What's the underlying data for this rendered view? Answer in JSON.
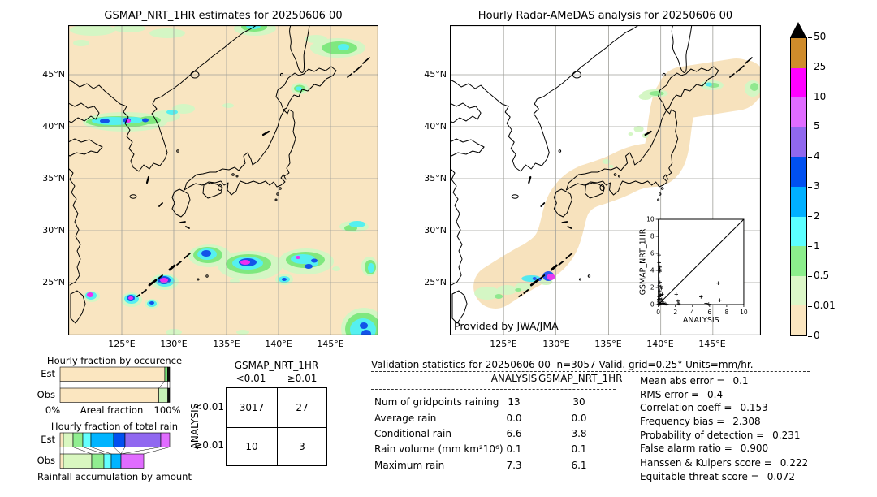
{
  "left_map": {
    "title": "GSMAP_NRT_1HR estimates for 20250606 00",
    "lat_labels": [
      "45°N",
      "40°N",
      "35°N",
      "30°N",
      "25°N"
    ],
    "lon_labels": [
      "125°E",
      "130°E",
      "135°E",
      "140°E",
      "145°E"
    ]
  },
  "right_map": {
    "title": "Hourly Radar-AMeDAS analysis for 20250606 00",
    "lat_labels": [
      "45°N",
      "40°N",
      "35°N",
      "30°N",
      "25°N"
    ],
    "lon_labels": [
      "125°E",
      "130°E",
      "135°E",
      "140°E",
      "145°E"
    ],
    "credit": "Provided by JWA/JMA"
  },
  "colorbar": {
    "tick_labels": [
      "50",
      "25",
      "10",
      "5",
      "4",
      "3",
      "2",
      "1",
      "0.5",
      "0.01",
      "0"
    ],
    "segment_colors_top_to_bottom": [
      "#cf8c2b",
      "#ff00ff",
      "#e06cff",
      "#9068ee",
      "#0050f0",
      "#00b0ff",
      "#5cffff",
      "#8cee8c",
      "#dcf7c8",
      "#fbe6c0"
    ],
    "overflow_color": "#000000",
    "units": "mm/hr"
  },
  "occurrence_panel": {
    "title": "Hourly fraction by occurence",
    "row_labels": [
      "Est",
      "Obs"
    ],
    "x_left": "0%",
    "x_title": "Areal fraction",
    "x_right": "100%"
  },
  "totalrain_panel": {
    "title": "Hourly fraction of total rain",
    "row_labels": [
      "Est",
      "Obs"
    ],
    "caption": "Rainfall accumulation by amount"
  },
  "contingency": {
    "col_title": "GSMAP_NRT_1HR",
    "row_title": "ANALYSIS",
    "col_labels": [
      "<0.01",
      "≥0.01"
    ],
    "row_labels": [
      "<0.01",
      "≥0.01"
    ],
    "values": [
      [
        "3017",
        "27"
      ],
      [
        "10",
        "3"
      ]
    ]
  },
  "stats": {
    "header": "Validation statistics for 20250606 00  n=3057 Valid. grid=0.25° Units=mm/hr.",
    "col_headers": [
      "ANALYSIS",
      "GSMAP_NRT_1HR"
    ],
    "rows": [
      {
        "label": "Num of gridpoints raining",
        "analysis": "13",
        "gsmap": "30"
      },
      {
        "label": "Average rain",
        "analysis": "0.0",
        "gsmap": "0.0"
      },
      {
        "label": "Conditional rain",
        "analysis": "6.6",
        "gsmap": "3.8"
      },
      {
        "label": "Rain volume (mm km²10⁶)",
        "analysis": "0.1",
        "gsmap": "0.1"
      },
      {
        "label": "Maximum rain",
        "analysis": "7.3",
        "gsmap": "6.1"
      }
    ],
    "metrics": [
      {
        "name": "Mean abs error =",
        "value": "0.1"
      },
      {
        "name": "RMS error =",
        "value": "0.4"
      },
      {
        "name": "Correlation coeff =",
        "value": "0.153"
      },
      {
        "name": "Frequency bias =",
        "value": "2.308"
      },
      {
        "name": "Probability of detection =",
        "value": "0.231"
      },
      {
        "name": "False alarm ratio =",
        "value": "0.900"
      },
      {
        "name": "Hanssen & Kuipers score =",
        "value": "0.222"
      },
      {
        "name": "Equitable threat score =",
        "value": "0.072"
      }
    ]
  },
  "chart_data": [
    {
      "type": "heatmap",
      "title": "GSMAP_NRT_1HR estimates for 20250606 00",
      "x_ticks": [
        "125°E",
        "130°E",
        "135°E",
        "140°E",
        "145°E"
      ],
      "y_ticks": [
        "45°N",
        "40°N",
        "35°N",
        "30°N",
        "25°N"
      ],
      "units": "mm/hr",
      "colorbar_levels": [
        0,
        0.01,
        0.5,
        1,
        2,
        3,
        4,
        5,
        10,
        25,
        50
      ],
      "colorbar_colors_low_to_high": [
        "#fbe6c0",
        "#dcf7c8",
        "#8cee8c",
        "#5cffff",
        "#00b0ff",
        "#0050f0",
        "#9068ee",
        "#e06cff",
        "#ff00ff",
        "#cf8c2b"
      ],
      "overflow_color": "#000000",
      "grid": true
    },
    {
      "type": "heatmap",
      "title": "Hourly Radar-AMeDAS analysis for 20250606 00",
      "x_ticks": [
        "125°E",
        "130°E",
        "135°E",
        "140°E",
        "145°E"
      ],
      "y_ticks": [
        "45°N",
        "40°N",
        "35°N",
        "30°N",
        "25°N"
      ],
      "units": "mm/hr",
      "annotation": "Provided by JWA/JMA",
      "grid": true
    },
    {
      "type": "scatter",
      "xlabel": "ANALYSIS",
      "ylabel": "GSMAP_NRT_1HR",
      "xlim": [
        0,
        10
      ],
      "ylim": [
        0,
        10
      ],
      "x_ticks": [
        "0",
        "2",
        "4",
        "6",
        "8",
        "10"
      ],
      "y_ticks": [
        "0",
        "2",
        "4",
        "6",
        "8",
        "10"
      ],
      "diagonal": true,
      "marker": "+",
      "points": [
        [
          0.05,
          0.05
        ],
        [
          0.1,
          0.1
        ],
        [
          0.15,
          0.05
        ],
        [
          0.2,
          0.15
        ],
        [
          0.3,
          0.1
        ],
        [
          0.05,
          0.3
        ],
        [
          0.1,
          0.45
        ],
        [
          0.05,
          0.6
        ],
        [
          0.15,
          0.7
        ],
        [
          0.1,
          0.9
        ],
        [
          0.2,
          1.2
        ],
        [
          0.3,
          1.1
        ],
        [
          0.15,
          1.6
        ],
        [
          0.35,
          1.9
        ],
        [
          0.1,
          2.2
        ],
        [
          0.3,
          2.1
        ],
        [
          0.2,
          2.6
        ],
        [
          0.1,
          3.0
        ],
        [
          0.2,
          3.9
        ],
        [
          0.1,
          4.0
        ],
        [
          0.15,
          4.1
        ],
        [
          0.1,
          4.5
        ],
        [
          0.2,
          4.4
        ],
        [
          0.1,
          4.9
        ],
        [
          0.1,
          5.8
        ],
        [
          0.4,
          0.6
        ],
        [
          0.5,
          0.3
        ],
        [
          0.6,
          0.15
        ],
        [
          0.8,
          0.1
        ],
        [
          1.0,
          0.05
        ],
        [
          0.45,
          1.2
        ],
        [
          1.6,
          3.0
        ],
        [
          2.1,
          1.2
        ],
        [
          2.3,
          0.4
        ],
        [
          2.4,
          0.1
        ],
        [
          5.0,
          0.9
        ],
        [
          5.6,
          0.15
        ],
        [
          5.9,
          0.05
        ],
        [
          7.0,
          2.5
        ],
        [
          7.2,
          0.5
        ]
      ]
    },
    {
      "type": "table",
      "title": "Contingency table",
      "col_axis": "GSMAP_NRT_1HR",
      "row_axis": "ANALYSIS",
      "col_labels": [
        "<0.01",
        "≥0.01"
      ],
      "row_labels": [
        "<0.01",
        "≥0.01"
      ],
      "values": [
        [
          3017,
          27
        ],
        [
          10,
          3
        ]
      ]
    },
    {
      "type": "table",
      "title": "Validation statistics for 20250606 00  n=3057 Valid. grid=0.25° Units=mm/hr.",
      "columns": [
        "ANALYSIS",
        "GSMAP_NRT_1HR"
      ],
      "rows": [
        [
          "Num of gridpoints raining",
          13,
          30
        ],
        [
          "Average rain",
          0.0,
          0.0
        ],
        [
          "Conditional rain",
          6.6,
          3.8
        ],
        [
          "Rain volume (mm km²10⁶)",
          0.1,
          0.1
        ],
        [
          "Maximum rain",
          7.3,
          6.1
        ]
      ],
      "metrics": {
        "Mean abs error": 0.1,
        "RMS error": 0.4,
        "Correlation coeff": 0.153,
        "Frequency bias": 2.308,
        "Probability of detection": 0.231,
        "False alarm ratio": 0.9,
        "Hanssen & Kuipers score": 0.222,
        "Equitable threat score": 0.072
      }
    },
    {
      "type": "bar",
      "id": "occurrence",
      "title": "Hourly fraction by occurence",
      "categories": [
        "Est",
        "Obs"
      ],
      "xlabel": "Areal fraction",
      "x_range_labels": [
        "0%",
        "100%"
      ],
      "est_segments": [
        [
          "#fbe6c0",
          0.955
        ],
        [
          "#77dd77",
          0.026
        ],
        [
          "#111111",
          0.019
        ]
      ],
      "obs_segments": [
        [
          "#fbe6c0",
          0.9
        ],
        [
          "#c6f2b6",
          0.082
        ],
        [
          "#111111",
          0.018
        ]
      ],
      "connectors": [
        [
          0,
          0
        ],
        [
          0.955,
          0.9
        ],
        [
          0.981,
          0.982
        ],
        [
          1,
          1
        ]
      ]
    },
    {
      "type": "bar",
      "id": "totalrain",
      "title": "Hourly fraction of total rain",
      "categories": [
        "Est",
        "Obs"
      ],
      "caption": "Rainfall accumulation by amount",
      "est_segments": [
        [
          "#fbe6c0",
          0.0296
        ],
        [
          "#d9f7c0",
          0.0889
        ],
        [
          "#90ee90",
          0.0889
        ],
        [
          "#63ffff",
          0.0741
        ],
        [
          "#00b4ff",
          0.2074
        ],
        [
          "#0050f0",
          0.1037
        ],
        [
          "#9068f0",
          0.3259
        ],
        [
          "#e06cff",
          0.0815
        ]
      ],
      "obs_segments": [
        [
          "#fbe6c0",
          0.0296
        ],
        [
          "#d9f7c0",
          0.2593
        ],
        [
          "#90ee90",
          0.1111
        ],
        [
          "#63ffff",
          0.0667
        ],
        [
          "#00b4ff",
          0.0889
        ],
        [
          "#e06cff",
          0.2074
        ]
      ],
      "connectors": [
        [
          0,
          0
        ],
        [
          0.0296,
          0.0296
        ],
        [
          0.1185,
          0.2889
        ],
        [
          0.2074,
          0.4
        ],
        [
          0.2815,
          0.4667
        ],
        [
          0.4889,
          0.5556
        ],
        [
          0.5926,
          0.5556
        ],
        [
          0.9185,
          0.5556
        ],
        [
          1,
          0.763
        ]
      ]
    }
  ]
}
